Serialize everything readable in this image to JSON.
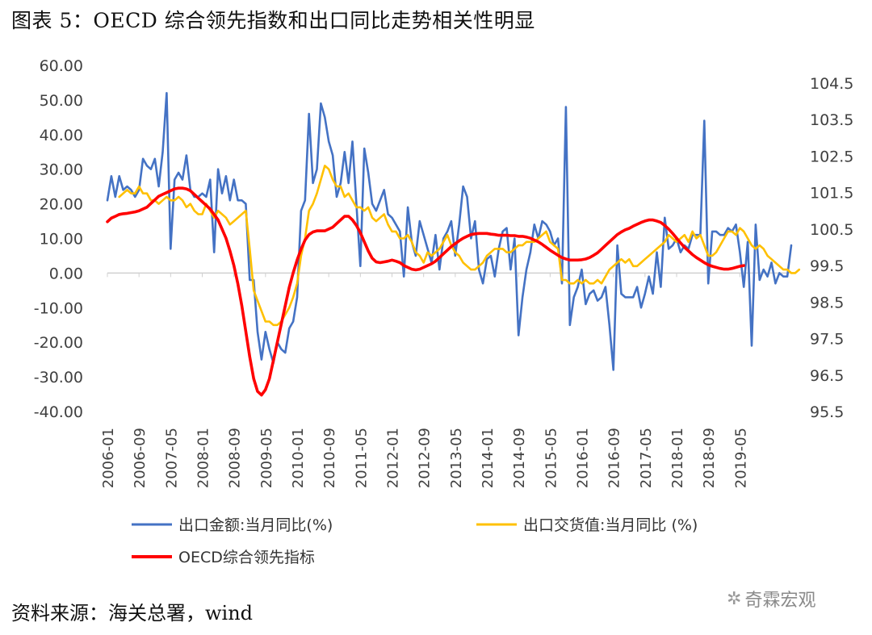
{
  "title": "图表 5：OECD 综合领先指数和出口同比走势相关性明显",
  "source": "资料来源：海关总署，wind",
  "watermark": "奇霖宏观",
  "chart_data": {
    "type": "line",
    "left_axis": {
      "ticks": [
        "60.00",
        "50.00",
        "40.00",
        "30.00",
        "20.00",
        "10.00",
        "0.00",
        "-10.00",
        "-20.00",
        "-30.00",
        "-40.00"
      ],
      "ylim": [
        -40,
        60
      ]
    },
    "right_axis": {
      "ticks": [
        "104.5",
        "103.5",
        "102.5",
        "101.5",
        "100.5",
        "99.5",
        "98.5",
        "97.5",
        "96.5",
        "95.5"
      ],
      "ylim": [
        95.5,
        104.5
      ]
    },
    "x_tick_labels": [
      "2006-01",
      "2006-09",
      "2007-05",
      "2008-01",
      "2008-09",
      "2009-05",
      "2010-01",
      "2010-09",
      "2011-05",
      "2012-01",
      "2012-09",
      "2013-05",
      "2014-01",
      "2014-09",
      "2015-05",
      "2016-01",
      "2016-09",
      "2017-05",
      "2018-01",
      "2018-09",
      "2019-05"
    ],
    "start": "2006-01",
    "series": [
      {
        "name": "出口金额:当月同比(%)",
        "axis": "left",
        "color": "#4472C4",
        "values": [
          21,
          28,
          22,
          28,
          24,
          25,
          24,
          22,
          24,
          33,
          31,
          30,
          33,
          25,
          35,
          52,
          7,
          27,
          29,
          27,
          34,
          24,
          22,
          22,
          23,
          22,
          27,
          6,
          30,
          23,
          28,
          21,
          27,
          21,
          21,
          20,
          -2,
          -2,
          -17,
          -25,
          -17,
          -22,
          -26,
          -20,
          -22,
          -23,
          -16,
          -14,
          -7,
          18,
          21,
          46,
          26,
          30,
          49,
          45,
          38,
          34,
          22,
          26,
          35,
          26,
          38,
          20,
          2,
          36,
          29,
          20,
          18,
          21,
          24,
          17,
          16,
          14,
          12,
          -1,
          19,
          9,
          5,
          15,
          11,
          7,
          3,
          11,
          1,
          10,
          12,
          15,
          5,
          14,
          25,
          22,
          10,
          15,
          1,
          -3,
          4,
          5,
          -1,
          7,
          12,
          13,
          1,
          10,
          -18,
          -7,
          1,
          6,
          14,
          10,
          15,
          14,
          12,
          8,
          10,
          -3,
          48,
          -15,
          -7,
          -4,
          1,
          -9,
          -6,
          -5,
          -8,
          -7,
          -4,
          -15,
          -28,
          8,
          -6,
          -7,
          -7,
          -7,
          -4,
          -10,
          -6,
          -1,
          -6,
          6,
          -4,
          16,
          7,
          8,
          10,
          6,
          8,
          7,
          11,
          11,
          11,
          44,
          -3,
          12,
          12,
          11,
          11,
          13,
          12,
          14,
          6,
          -4,
          9,
          -21,
          14,
          -2,
          1,
          -1,
          3,
          -3,
          0,
          -1,
          -1,
          8
        ]
      },
      {
        "name": "出口交货值:当月同比 (%)",
        "axis": "left",
        "color": "#FFC000",
        "values": [
          null,
          null,
          null,
          22,
          23,
          24,
          23,
          23,
          25,
          23,
          23,
          21,
          21,
          20,
          21,
          22,
          21,
          21,
          22,
          21,
          19,
          20,
          18,
          17,
          17,
          20,
          18,
          16,
          18,
          17,
          16,
          14,
          15,
          16,
          17,
          18,
          7,
          -5,
          -8,
          -11,
          -14,
          -14,
          -15,
          -15,
          -14,
          -12,
          -10,
          -7,
          -3,
          5,
          10,
          18,
          20,
          23,
          27,
          31,
          30,
          27,
          25,
          25,
          22,
          23,
          21,
          19,
          19,
          18,
          19,
          16,
          15,
          16,
          17,
          14,
          12,
          12,
          10,
          10,
          11,
          9,
          6,
          5,
          3,
          6,
          5,
          6,
          7,
          9,
          11,
          8,
          6,
          5,
          3,
          2,
          1,
          1,
          2,
          3,
          5,
          6,
          7,
          7,
          7,
          6,
          6,
          7,
          8,
          8,
          9,
          9,
          9,
          10,
          11,
          12,
          9,
          8,
          7,
          -2,
          -2,
          -3,
          -3,
          -2,
          -3,
          -2,
          -3,
          -3,
          -2,
          -3,
          -1,
          1,
          2,
          3,
          4,
          3,
          4,
          2,
          2,
          3,
          4,
          5,
          6,
          7,
          8,
          9,
          11,
          10,
          9,
          10,
          11,
          9,
          12,
          10,
          11,
          8,
          5,
          5,
          6,
          8,
          10,
          12,
          12,
          11,
          13,
          12,
          10,
          8,
          7,
          8,
          7,
          5,
          4,
          3,
          2,
          1,
          1,
          0,
          0,
          1
        ]
      },
      {
        "name": "OECD综合领先指标",
        "axis": "right",
        "color": "#FF0000",
        "values": [
          100.7,
          100.8,
          100.85,
          100.9,
          100.92,
          100.93,
          100.95,
          100.97,
          101.0,
          101.05,
          101.1,
          101.2,
          101.3,
          101.4,
          101.45,
          101.5,
          101.55,
          101.6,
          101.62,
          101.62,
          101.6,
          101.55,
          101.45,
          101.35,
          101.25,
          101.15,
          101.05,
          100.9,
          100.75,
          100.5,
          100.25,
          99.9,
          99.5,
          99.0,
          98.4,
          97.7,
          97.0,
          96.4,
          96.05,
          95.95,
          96.1,
          96.4,
          96.9,
          97.4,
          97.9,
          98.4,
          98.9,
          99.3,
          99.65,
          99.95,
          100.2,
          100.35,
          100.42,
          100.45,
          100.45,
          100.45,
          100.5,
          100.55,
          100.65,
          100.75,
          100.85,
          100.85,
          100.75,
          100.6,
          100.4,
          100.15,
          99.9,
          99.7,
          99.6,
          99.58,
          99.6,
          99.62,
          99.65,
          99.62,
          99.58,
          99.5,
          99.45,
          99.4,
          99.38,
          99.4,
          99.45,
          99.5,
          99.55,
          99.62,
          99.72,
          99.82,
          99.92,
          100.02,
          100.1,
          100.18,
          100.25,
          100.3,
          100.35,
          100.37,
          100.38,
          100.38,
          100.38,
          100.36,
          100.35,
          100.33,
          100.33,
          100.33,
          100.32,
          100.32,
          100.3,
          100.3,
          100.28,
          100.25,
          100.2,
          100.15,
          100.08,
          100.0,
          99.92,
          99.85,
          99.78,
          99.72,
          99.68,
          99.65,
          99.65,
          99.65,
          99.66,
          99.68,
          99.72,
          99.78,
          99.85,
          99.95,
          100.05,
          100.15,
          100.25,
          100.35,
          100.42,
          100.48,
          100.52,
          100.58,
          100.63,
          100.68,
          100.72,
          100.75,
          100.75,
          100.72,
          100.68,
          100.6,
          100.5,
          100.38,
          100.25,
          100.12,
          100.0,
          99.9,
          99.8,
          99.72,
          99.65,
          99.58,
          99.52,
          99.48,
          99.45,
          99.42,
          99.4,
          99.4,
          99.42,
          99.45,
          99.48,
          99.5
        ]
      }
    ],
    "legend": [
      "出口金额:当月同比(%)",
      "出口交货值:当月同比 (%)",
      "OECD综合领先指标"
    ],
    "grid": false
  }
}
